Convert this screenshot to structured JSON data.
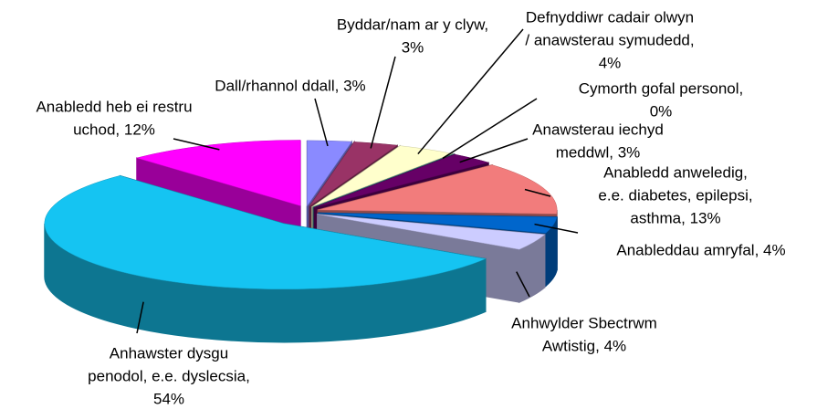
{
  "chart_data": {
    "type": "pie3d",
    "categories": [
      "Dall/rhannol ddall",
      "Byddar/nam ar y clyw",
      "Defnyddiwr cadair olwyn / anawsterau symudedd",
      "Cymorth gofal personol",
      "Anawsterau iechyd meddwl",
      "Anabledd anweledig, e.e. diabetes, epilepsi, asthma",
      "Anableddau amryfal",
      "Anhwylder Sbectrwm Awtistig",
      "Anhawster dysgu penodol, e.e. dyslecsia",
      "Anabledd heb ei restru uchod"
    ],
    "values": [
      3,
      3,
      4,
      0,
      3,
      13,
      4,
      4,
      54,
      12
    ],
    "value_labels": [
      [
        "Dall/rhannol ddall, 3%"
      ],
      [
        "Byddar/nam ar y clyw,",
        "3%"
      ],
      [
        "Defnyddiwr cadair olwyn",
        "/ anawsterau symudedd,",
        "4%"
      ],
      [
        "Cymorth gofal personol,",
        "0%"
      ],
      [
        "Anawsterau iechyd",
        "meddwl, 3%"
      ],
      [
        "Anabledd anweledig,",
        "e.e. diabetes, epilepsi,",
        "asthma, 13%"
      ],
      [
        "Anableddau amryfal, 4%"
      ],
      [
        "Anhwylder Sbectrwm",
        "Awtistig, 4%"
      ],
      [
        "Anhawster dysgu",
        "penodol, e.e. dyslecsia,",
        "54%"
      ],
      [
        "Anabledd heb ei restru",
        "uchod, 12%"
      ]
    ],
    "colors": [
      "#8a8aff",
      "#993366",
      "#ffffcc",
      "#339999",
      "#660066",
      "#f27c7c",
      "#0066cc",
      "#ccccff",
      "#15c4f2",
      "#ff00ff"
    ]
  }
}
